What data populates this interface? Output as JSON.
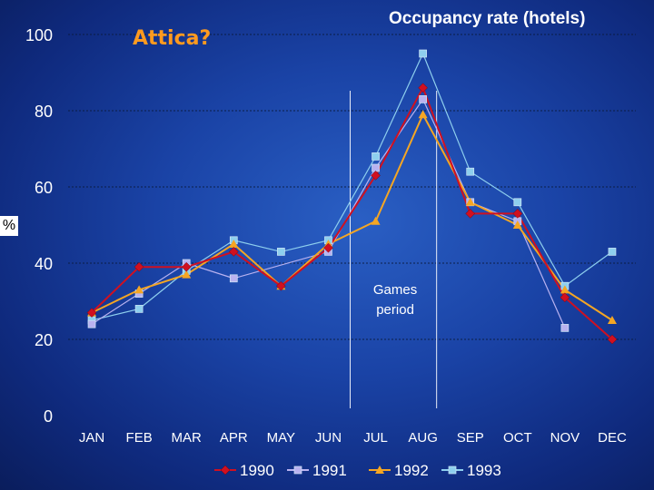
{
  "subtitle": "Attica?",
  "unit": "%",
  "chart_data": {
    "type": "line",
    "title": "Occupancy rate (hotels)",
    "xlabel": "",
    "ylabel": "%",
    "categories": [
      "JAN",
      "FEB",
      "MAR",
      "APR",
      "MAY",
      "JUN",
      "JUL",
      "AUG",
      "SEP",
      "OCT",
      "NOV",
      "DEC"
    ],
    "ylim": [
      0,
      100
    ],
    "yticks": [
      0,
      20,
      40,
      60,
      80,
      100
    ],
    "grid": true,
    "legend_position": "bottom",
    "series": [
      {
        "name": "1990",
        "color": "#d01020",
        "marker": "diamond",
        "values": [
          27,
          39,
          39,
          43,
          34,
          44,
          63,
          86,
          53,
          53,
          31,
          20
        ]
      },
      {
        "name": "1991",
        "color": "#b9b2f0",
        "marker": "square",
        "values": [
          24,
          32,
          40,
          36,
          null,
          43,
          65,
          83,
          56,
          51,
          23,
          null
        ]
      },
      {
        "name": "1992",
        "color": "#f5a623",
        "marker": "triangle",
        "values": [
          27,
          33,
          37,
          45,
          34,
          45,
          51,
          79,
          56,
          50,
          33,
          25
        ]
      },
      {
        "name": "1993",
        "color": "#8ecfee",
        "marker": "square",
        "values": [
          25,
          28,
          38,
          46,
          43,
          46,
          68,
          95,
          64,
          56,
          34,
          43
        ]
      }
    ],
    "annotations": [
      {
        "text_lines": [
          "Games",
          "period"
        ],
        "x_from": "JUL",
        "x_to": "AUG"
      }
    ]
  }
}
